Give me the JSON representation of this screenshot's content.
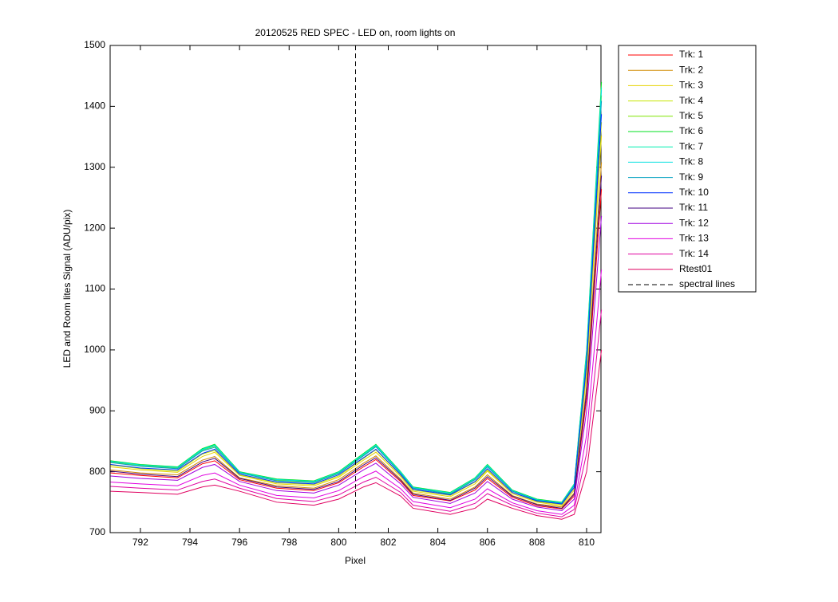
{
  "chart_data": {
    "type": "line",
    "title": "20120525 RED SPEC - LED on, room lights on",
    "xlabel": "Pixel",
    "ylabel": "LED and Room lites Signal (ADU/pix)",
    "xlim": [
      790.78,
      810.58
    ],
    "ylim": [
      700,
      1500
    ],
    "xticks": [
      792,
      794,
      796,
      798,
      800,
      802,
      804,
      806,
      808,
      810
    ],
    "yticks": [
      700,
      800,
      900,
      1000,
      1100,
      1200,
      1300,
      1400,
      1500
    ],
    "grid": false,
    "legend": "outside-right",
    "x": [
      790.8,
      792,
      793.5,
      794.5,
      795,
      796,
      797.5,
      799,
      800,
      801,
      801.5,
      802.5,
      803,
      804.5,
      805.5,
      806,
      807,
      808,
      809,
      809.5,
      810,
      810.6
    ],
    "series": [
      {
        "name": "Trk: 1",
        "color": "#ff0000",
        "values": [
          798,
          794,
          790,
          813,
          818,
          787,
          773,
          769,
          782,
          808,
          820,
          784,
          761,
          752,
          770,
          789,
          758,
          744,
          739,
          760,
          920,
          1264
        ]
      },
      {
        "name": "Trk: 2",
        "color": "#d08a00",
        "values": [
          803,
          798,
          795,
          819,
          825,
          790,
          777,
          773,
          787,
          814,
          826,
          788,
          765,
          755,
          775,
          795,
          761,
          747,
          742,
          765,
          940,
          1308
        ]
      },
      {
        "name": "Trk: 3",
        "color": "#e6d200",
        "values": [
          808,
          803,
          799,
          825,
          832,
          794,
          780,
          777,
          791,
          819,
          832,
          792,
          768,
          759,
          780,
          801,
          764,
          750,
          744,
          770,
          960,
          1352
        ]
      },
      {
        "name": "Trk: 4",
        "color": "#c6e600",
        "values": [
          811,
          805,
          801,
          829,
          835,
          795,
          782,
          779,
          793,
          822,
          836,
          794,
          770,
          761,
          783,
          803,
          766,
          751,
          746,
          773,
          970,
          1374
        ]
      },
      {
        "name": "Trk: 5",
        "color": "#7ee600",
        "values": [
          816,
          810,
          806,
          835,
          842,
          798,
          786,
          783,
          798,
          827,
          842,
          798,
          773,
          764,
          788,
          809,
          769,
          754,
          749,
          778,
          990,
          1418
        ]
      },
      {
        "name": "Trk: 6",
        "color": "#00e020",
        "values": [
          818,
          812,
          808,
          838,
          845,
          800,
          788,
          785,
          800,
          830,
          845,
          800,
          775,
          766,
          790,
          812,
          770,
          755,
          750,
          780,
          1000,
          1440
        ]
      },
      {
        "name": "Trk: 7",
        "color": "#00f0b0",
        "values": [
          817,
          811,
          807,
          837,
          844,
          799,
          787,
          784,
          799,
          829,
          844,
          799,
          774,
          765,
          789,
          811,
          769,
          754,
          749,
          779,
          996,
          1431
        ]
      },
      {
        "name": "Trk: 8",
        "color": "#00e0e0",
        "values": [
          817,
          811,
          807,
          836,
          843,
          799,
          787,
          784,
          799,
          828,
          843,
          799,
          774,
          765,
          789,
          810,
          769,
          754,
          749,
          779,
          994,
          1427
        ]
      },
      {
        "name": "Trk: 9",
        "color": "#00a0c0",
        "values": [
          815,
          809,
          805,
          834,
          840,
          798,
          785,
          782,
          797,
          826,
          841,
          797,
          773,
          763,
          787,
          808,
          768,
          753,
          748,
          777,
          986,
          1409
        ]
      },
      {
        "name": "Trk: 10",
        "color": "#0030ff",
        "values": [
          812,
          806,
          803,
          830,
          837,
          796,
          783,
          780,
          795,
          823,
          837,
          795,
          771,
          762,
          784,
          805,
          766,
          752,
          747,
          774,
          976,
          1387
        ]
      },
      {
        "name": "Trk: 11",
        "color": "#400080",
        "values": [
          801,
          796,
          792,
          816,
          822,
          789,
          775,
          771,
          784,
          811,
          823,
          786,
          763,
          753,
          773,
          792,
          760,
          746,
          740,
          763,
          930,
          1286
        ]
      },
      {
        "name": "Trk: 12",
        "color": "#a000e0",
        "values": [
          793,
          789,
          786,
          807,
          812,
          784,
          769,
          765,
          778,
          803,
          814,
          780,
          758,
          748,
          765,
          784,
          755,
          742,
          736,
          755,
          900,
          1220
        ]
      },
      {
        "name": "Trk: 13",
        "color": "#e000e0",
        "values": [
          783,
          780,
          777,
          794,
          798,
          778,
          761,
          757,
          769,
          792,
          801,
          772,
          751,
          741,
          755,
          772,
          749,
          736,
          730,
          745,
          860,
          1132
        ]
      },
      {
        "name": "Trk: 14",
        "color": "#e000a0",
        "values": [
          776,
          773,
          770,
          784,
          788,
          773,
          756,
          751,
          762,
          783,
          791,
          766,
          745,
          735,
          748,
          764,
          745,
          732,
          726,
          738,
          830,
          1066
        ]
      },
      {
        "name": "Rtest01",
        "color": "#e00060",
        "values": [
          768,
          766,
          763,
          775,
          778,
          768,
          750,
          745,
          755,
          775,
          782,
          760,
          740,
          730,
          740,
          755,
          740,
          728,
          722,
          730,
          800,
          1000
        ]
      }
    ],
    "spectral_lines": {
      "name": "spectral lines",
      "color": "#000000",
      "x": [
        800.68
      ]
    }
  }
}
